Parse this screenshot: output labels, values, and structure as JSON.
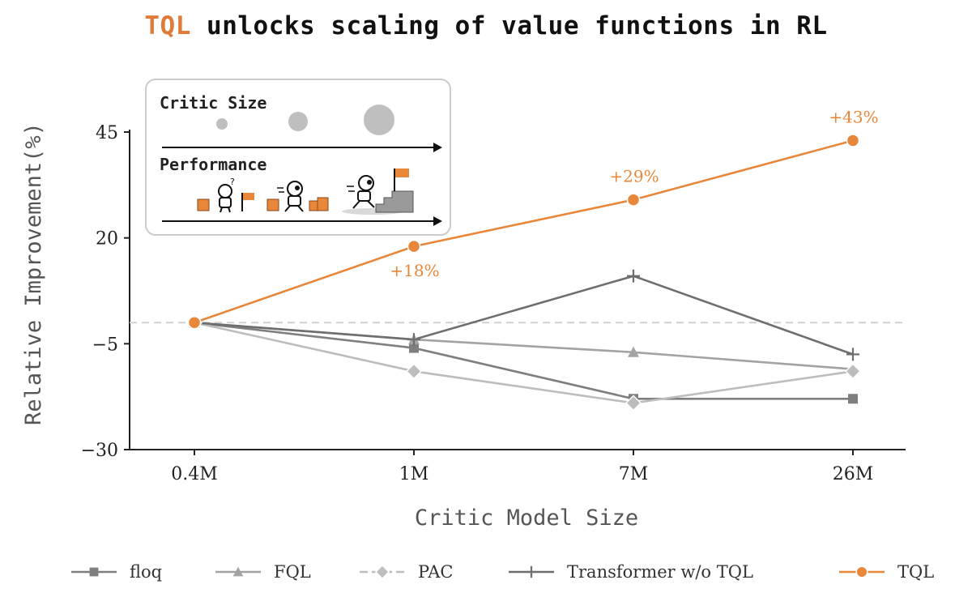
{
  "title": {
    "accent": "TQL",
    "rest": " unlocks scaling of value functions in RL"
  },
  "inset": {
    "label_size": "Critic Size",
    "label_perf": "Performance"
  },
  "chart_data": {
    "type": "line",
    "categories": [
      "0.4M",
      "1M",
      "7M",
      "26M"
    ],
    "xlabel": "Critic Model Size",
    "ylabel": "Relative Improvement(%)",
    "yticks": [
      45,
      20,
      -5,
      -30
    ],
    "ylim": [
      -30,
      50
    ],
    "baseline": 0,
    "series": [
      {
        "name": "floq",
        "values": [
          0,
          -6,
          -18,
          -18
        ],
        "color": "#7f7f7f",
        "marker": "square"
      },
      {
        "name": "FQL",
        "values": [
          0,
          -4,
          -7,
          -11
        ],
        "color": "#a3a3a3",
        "marker": "triangle"
      },
      {
        "name": "PAC",
        "values": [
          0,
          -11.5,
          -19,
          -11.5
        ],
        "color": "#bdbdbd",
        "marker": "diamond"
      },
      {
        "name": "Transformer w/o TQL",
        "values": [
          0,
          -4,
          11,
          -7.5
        ],
        "color": "#6e6e6e",
        "marker": "plus"
      },
      {
        "name": "TQL",
        "values": [
          0,
          18,
          29,
          43
        ],
        "color": "#e8873a",
        "marker": "circle"
      }
    ],
    "annotations": [
      {
        "category": "1M",
        "text": "+18%"
      },
      {
        "category": "7M",
        "text": "+29%"
      },
      {
        "category": "26M",
        "text": "+43%"
      }
    ],
    "legend_position": "bottom"
  }
}
